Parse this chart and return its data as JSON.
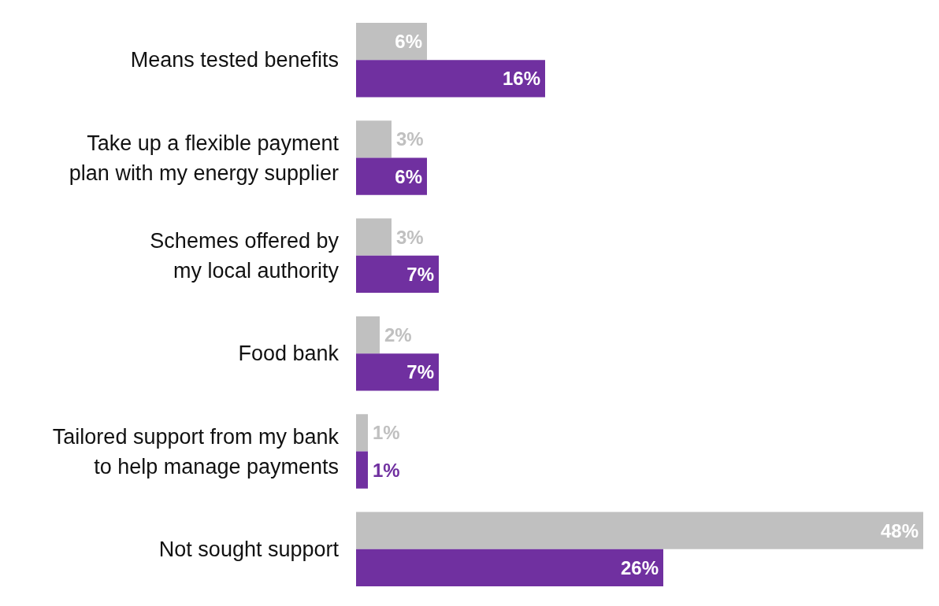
{
  "chart_data": {
    "type": "bar",
    "orientation": "horizontal",
    "categories": [
      "Means tested benefits",
      "Take up a flexible payment\nplan with my energy supplier",
      "Schemes offered by\nmy local authority",
      "Food bank",
      "Tailored support from my bank\nto help manage payments",
      "Not sought support"
    ],
    "series": [
      {
        "color": "#c0c0c0",
        "values": [
          6,
          3,
          3,
          2,
          1,
          48
        ],
        "value_labels": [
          "6%",
          "3%",
          "3%",
          "2%",
          "1%",
          "48%"
        ]
      },
      {
        "color": "#7030a0",
        "values": [
          16,
          6,
          7,
          7,
          1,
          26
        ],
        "value_labels": [
          "16%",
          "6%",
          "7%",
          "7%",
          "1%",
          "26%"
        ]
      }
    ]
  }
}
